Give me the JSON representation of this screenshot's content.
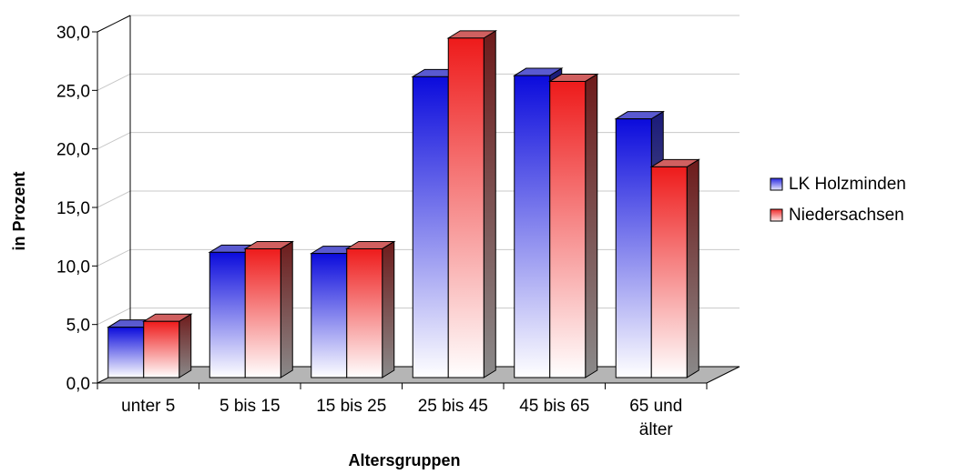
{
  "chart_data": {
    "type": "bar",
    "categories": [
      "unter 5",
      "5 bis 15",
      "15 bis 25",
      "25 bis 45",
      "45 bis 65",
      "65 und\nälter"
    ],
    "series": [
      {
        "name": "LK Holzminden",
        "values": [
          4.3,
          10.7,
          10.6,
          25.7,
          25.8,
          22.1
        ]
      },
      {
        "name": "Niedersachsen",
        "values": [
          4.8,
          11.0,
          11.0,
          29.0,
          25.3,
          18.0
        ]
      }
    ],
    "xlabel": "Altersgruppen",
    "ylabel": "in Prozent",
    "ylim": [
      0,
      30
    ],
    "yticks": [
      "0,0",
      "5,0",
      "10,0",
      "15,0",
      "20,0",
      "25,0",
      "30,0"
    ],
    "grid": true,
    "legend_position": "right",
    "colors": {
      "series1_top": "#0b0bdc",
      "series1_side": "#1a1a7a",
      "series2_top": "#ee1b1b",
      "series2_side": "#6e1b1b",
      "floor": "#b5b5b5",
      "grid": "#c8c8c8"
    }
  }
}
